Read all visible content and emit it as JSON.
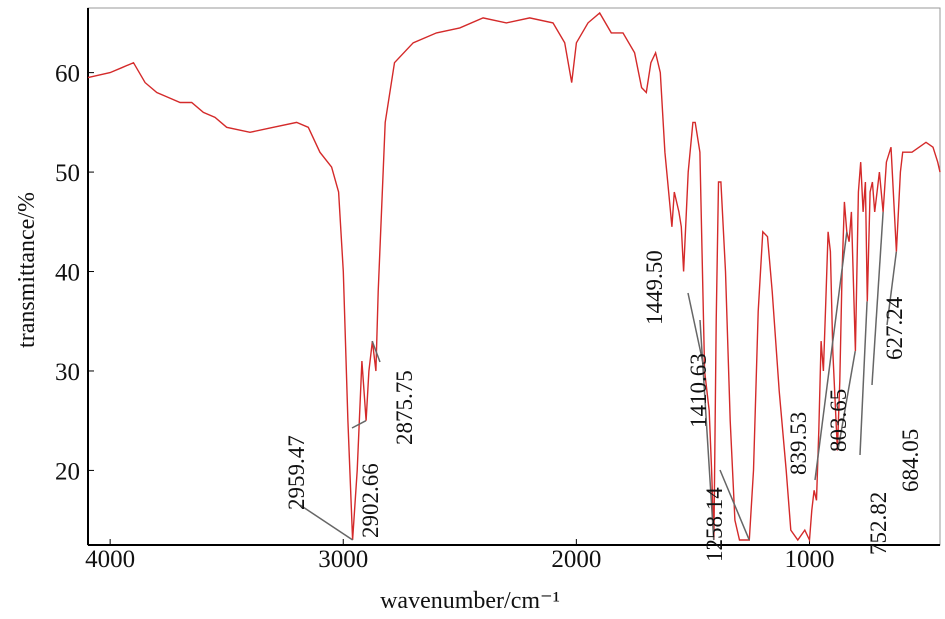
{
  "chart_data": {
    "type": "line",
    "xlabel": "wavenumber/cm⁻¹",
    "ylabel": "transmittance/%",
    "color": "#d42a2a",
    "xlim": [
      4095,
      440
    ],
    "xticks": [
      4000,
      3000,
      2000,
      1000
    ],
    "ylim": [
      12.5,
      66.5
    ],
    "yticks": [
      20,
      30,
      40,
      50,
      60
    ],
    "x": [
      4095,
      4000,
      3950,
      3900,
      3850,
      3800,
      3750,
      3700,
      3650,
      3600,
      3550,
      3500,
      3400,
      3300,
      3200,
      3150,
      3100,
      3050,
      3020,
      3000,
      2980,
      2960,
      2940,
      2920,
      2902,
      2890,
      2875,
      2860,
      2850,
      2820,
      2780,
      2700,
      2600,
      2500,
      2400,
      2300,
      2200,
      2100,
      2050,
      2020,
      2000,
      1950,
      1900,
      1850,
      1800,
      1750,
      1720,
      1700,
      1680,
      1660,
      1640,
      1620,
      1600,
      1590,
      1580,
      1560,
      1550,
      1540,
      1520,
      1500,
      1490,
      1470,
      1450,
      1430,
      1420,
      1410,
      1400,
      1390,
      1380,
      1360,
      1340,
      1320,
      1300,
      1270,
      1258,
      1240,
      1220,
      1200,
      1180,
      1160,
      1130,
      1100,
      1080,
      1050,
      1020,
      1000,
      990,
      980,
      970,
      960,
      950,
      940,
      930,
      920,
      910,
      900,
      880,
      870,
      860,
      850,
      840,
      830,
      820,
      803,
      790,
      780,
      770,
      760,
      752,
      740,
      730,
      720,
      700,
      684,
      670,
      650,
      627,
      610,
      600,
      560,
      500,
      470,
      450,
      440
    ],
    "values": [
      59.5,
      60,
      60.5,
      61,
      59,
      58,
      57.5,
      57,
      57,
      56,
      55.5,
      54.5,
      54,
      54.5,
      55,
      54.5,
      52,
      50.5,
      48,
      40,
      25,
      13,
      20,
      31,
      25,
      30,
      33,
      30,
      38,
      55,
      61,
      63,
      64,
      64.5,
      65.5,
      65,
      65.5,
      65,
      63,
      59,
      63,
      65,
      66,
      64,
      64,
      62,
      58.5,
      58,
      61,
      62,
      60,
      52,
      47,
      44.5,
      48,
      46,
      44.5,
      40,
      50,
      55,
      55,
      52,
      30,
      26,
      20,
      13,
      35,
      49,
      49,
      40,
      25,
      15,
      13,
      13,
      13,
      20,
      36,
      44,
      43.5,
      38,
      28,
      20,
      14,
      13,
      14,
      13,
      16,
      18,
      17,
      24,
      33,
      30,
      37,
      44,
      42,
      32,
      22,
      29,
      40,
      47,
      44,
      43,
      46,
      32,
      48,
      51,
      46,
      49,
      37,
      48,
      49,
      46,
      50,
      46,
      51,
      52.5,
      42,
      50,
      52,
      52,
      53,
      52.5,
      51,
      50
    ],
    "peaks": [
      {
        "label": "2959.47",
        "x": 2959.47,
        "y": 13
      },
      {
        "label": "2902.66",
        "x": 2902.66,
        "y": 25
      },
      {
        "label": "2875.75",
        "x": 2875.75,
        "y": 33
      },
      {
        "label": "1449.50",
        "x": 1449.5,
        "y": 30
      },
      {
        "label": "1410.63",
        "x": 1410.63,
        "y": 13
      },
      {
        "label": "1258.14",
        "x": 1258.14,
        "y": 13
      },
      {
        "label": "839.53",
        "x": 839.53,
        "y": 44
      },
      {
        "label": "803.65",
        "x": 803.65,
        "y": 32
      },
      {
        "label": "752.82",
        "x": 752.82,
        "y": 37
      },
      {
        "label": "684.05",
        "x": 684.05,
        "y": 46
      },
      {
        "label": "627.24",
        "x": 627.24,
        "y": 42
      }
    ]
  }
}
